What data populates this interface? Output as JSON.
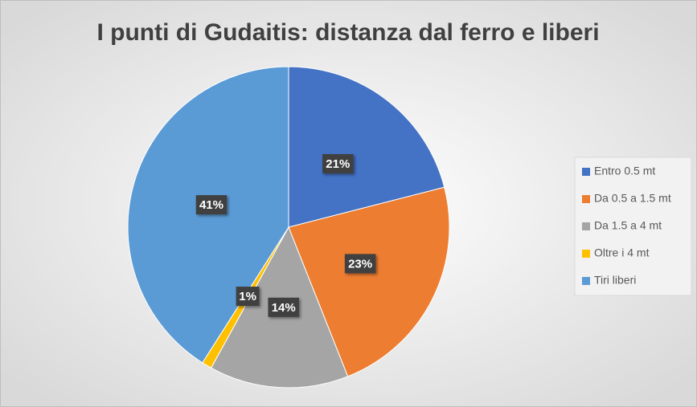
{
  "chart_data": {
    "type": "pie",
    "title": "I punti di Gudaitis: distanza dal ferro e liberi",
    "categories": [
      "Entro 0.5 mt",
      "Da 0.5 a 1.5 mt",
      "Da 1.5 a 4 mt",
      "Oltre i 4 mt",
      "Tiri liberi"
    ],
    "values": [
      21,
      23,
      14,
      1,
      41
    ],
    "value_labels": [
      "21%",
      "23%",
      "14%",
      "1%",
      "41%"
    ],
    "colors": [
      "#4472c4",
      "#ed7d31",
      "#a5a5a5",
      "#ffc000",
      "#5b9bd5"
    ],
    "legend": "right"
  }
}
